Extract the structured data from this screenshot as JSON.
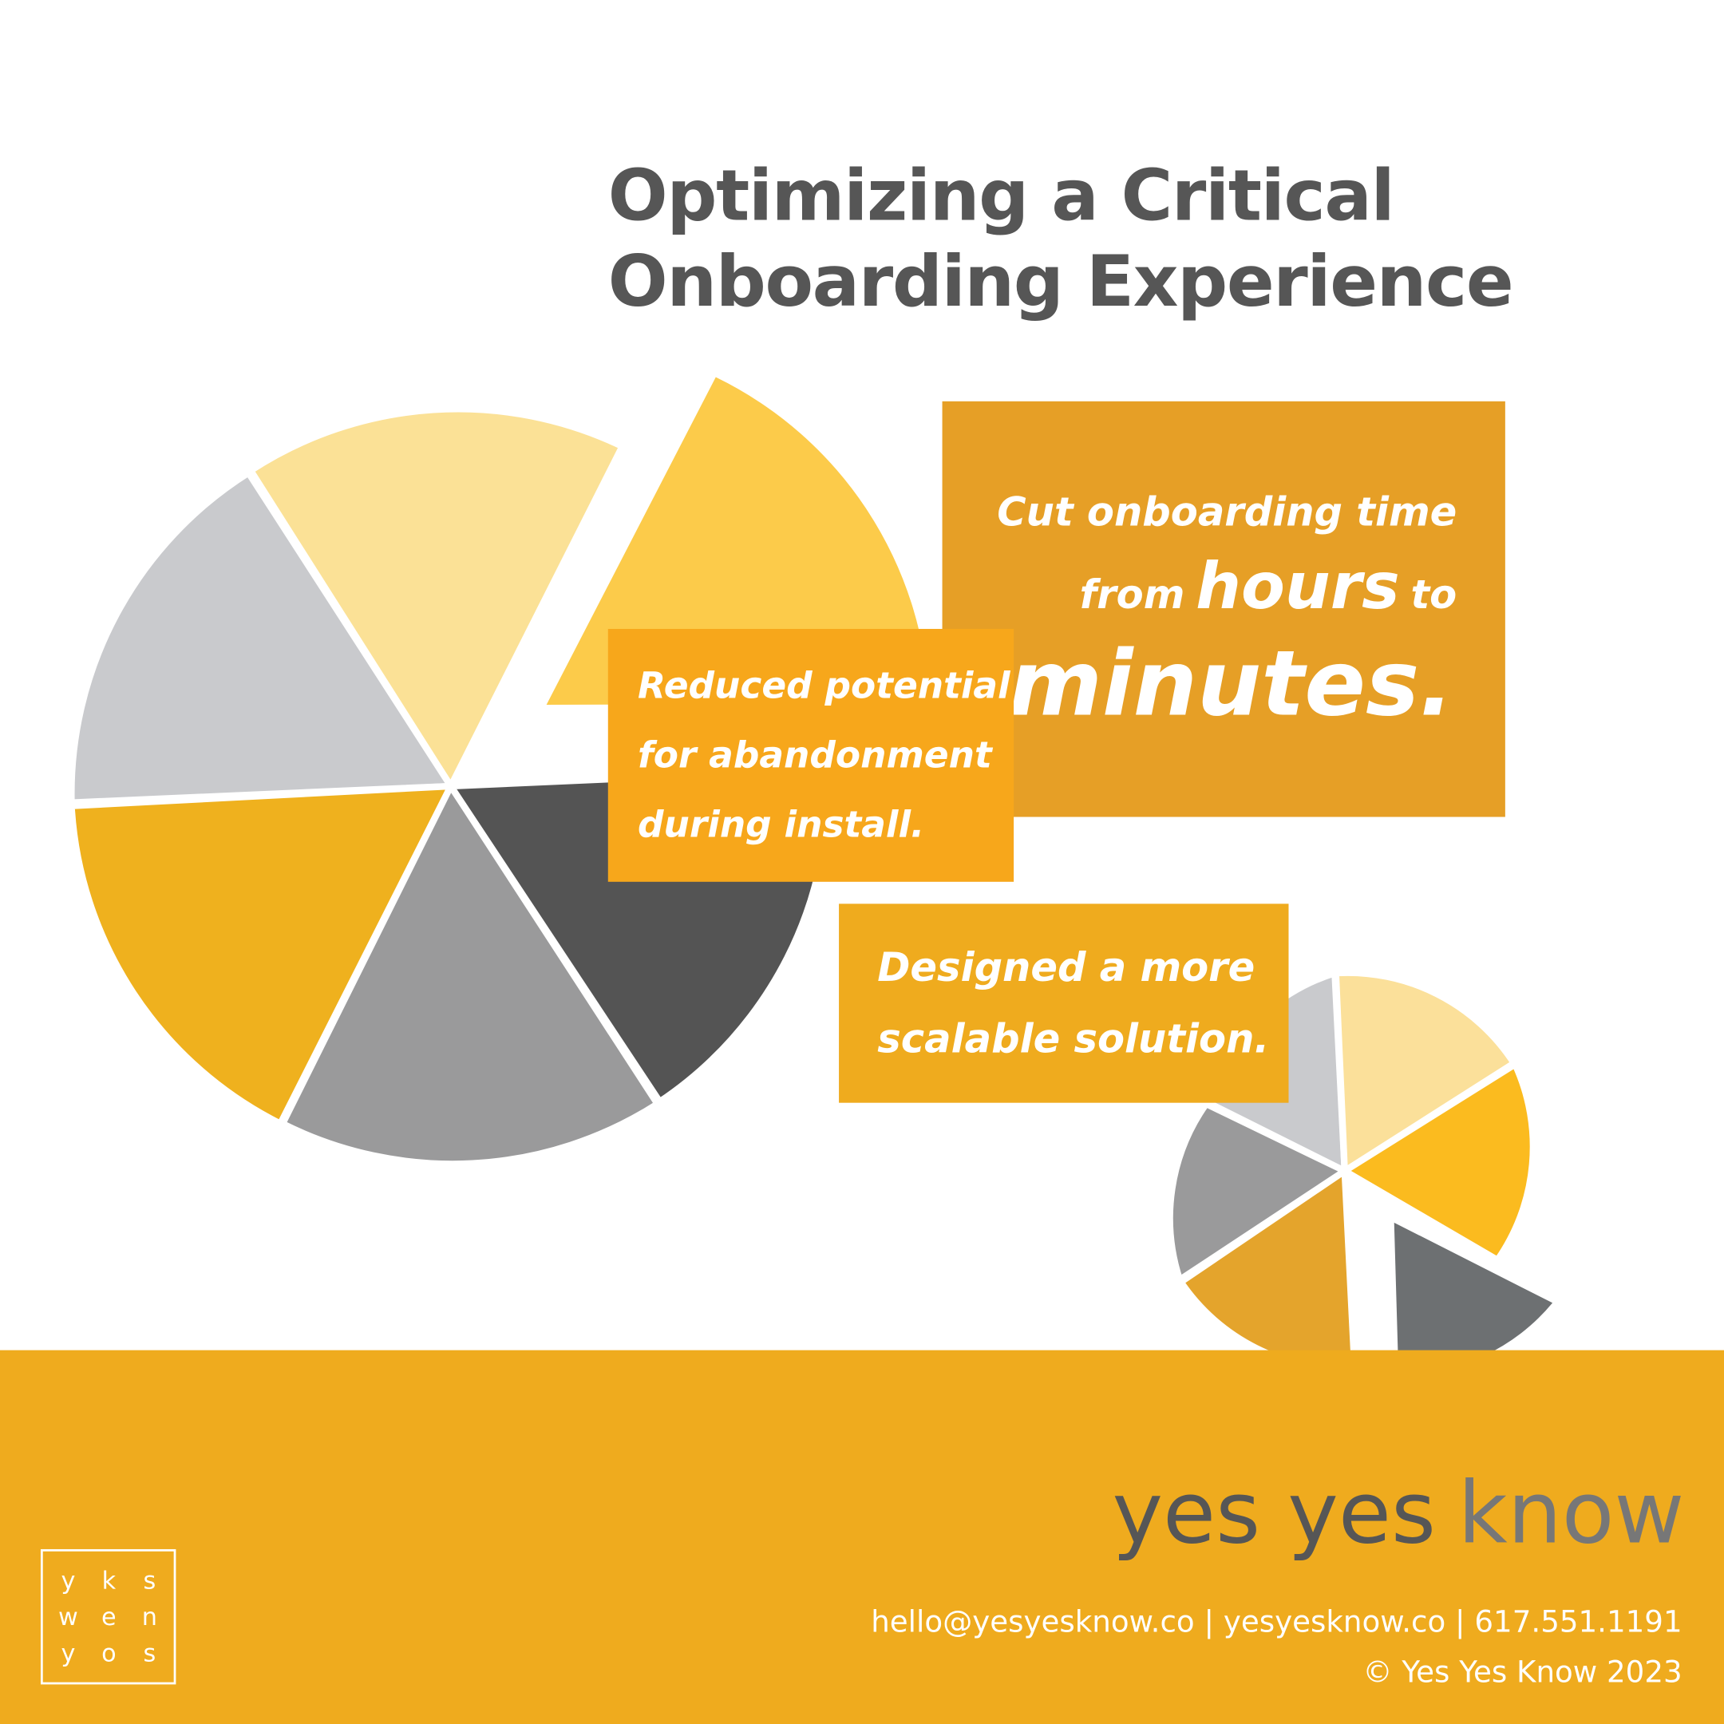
{
  "title": {
    "line1": "Optimizing a Critical",
    "line2": "Onboarding Experience"
  },
  "callouts": [
    {
      "line1": "Cut onboarding time",
      "from": "from",
      "hours": "hours",
      "to": "to",
      "minutes": "minutes."
    },
    {
      "lines": [
        "Reduced potential",
        "for abandonment",
        "during install."
      ]
    },
    {
      "lines": [
        "Designed a more",
        "scalable solution."
      ]
    }
  ],
  "footer": {
    "brand_dark": "yes yes",
    "brand_light": "know",
    "contact": "hello@yesyesknow.co | yesyesknow.co | 617.551.1191",
    "copyright": "© Yes Yes Know 2023",
    "logo": [
      [
        "y",
        "k",
        "s"
      ],
      [
        "w",
        "e",
        "n"
      ],
      [
        "y",
        "o",
        "s"
      ]
    ]
  }
}
